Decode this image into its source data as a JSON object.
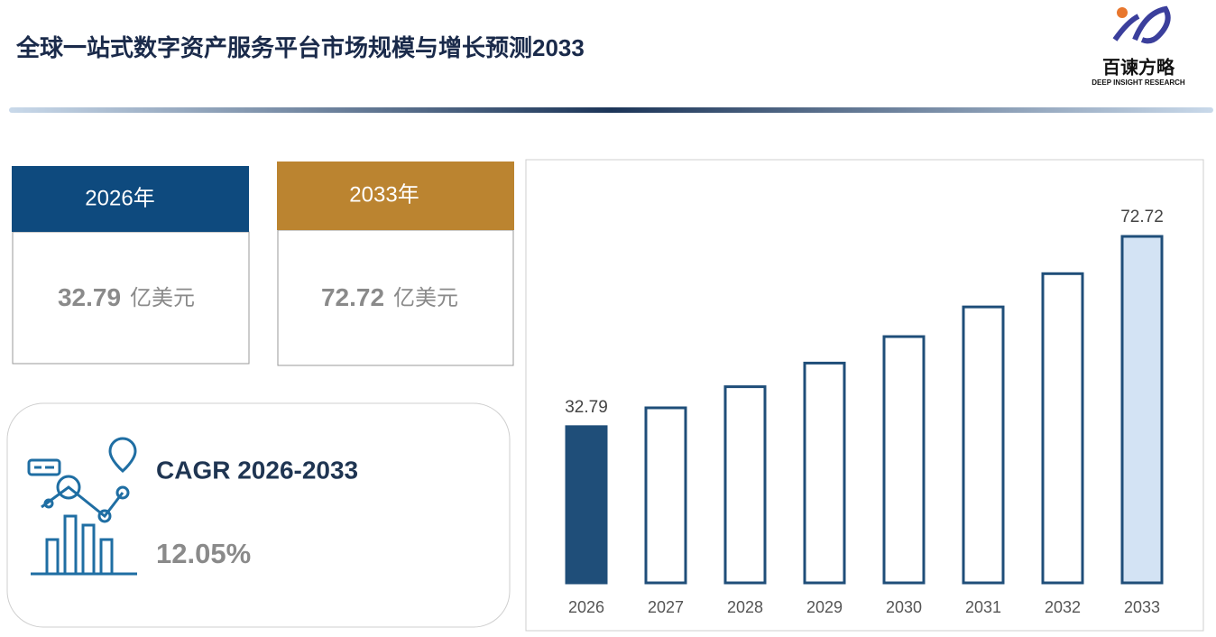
{
  "header": {
    "title": "全球一站式数字资产服务平台市场规模与增长预测2033",
    "logo_name": "百谏方略",
    "logo_tagline": "DEEP INSIGHT RESEARCH"
  },
  "cards": [
    {
      "header": "2026年",
      "value": 32.79,
      "unit": "亿美元",
      "color": "#0e4a7e"
    },
    {
      "header": "2033年",
      "value": 72.72,
      "unit": "亿美元",
      "color": "#bb8430"
    }
  ],
  "cagr": {
    "label": "CAGR 2026-2033",
    "value": "12.05%"
  },
  "chart_data": {
    "type": "bar",
    "categories": [
      "2026",
      "2027",
      "2028",
      "2029",
      "2030",
      "2031",
      "2032",
      "2033"
    ],
    "values": [
      32.79,
      36.74,
      41.17,
      46.13,
      51.69,
      57.92,
      64.9,
      72.72
    ],
    "value_labels": [
      "32.79",
      null,
      null,
      null,
      null,
      null,
      null,
      "72.72"
    ],
    "bar_fills": [
      "#1f4e79",
      "#ffffff",
      "#ffffff",
      "#ffffff",
      "#ffffff",
      "#ffffff",
      "#ffffff",
      "#d3e3f4"
    ],
    "border_color": "#1f4e79"
  }
}
